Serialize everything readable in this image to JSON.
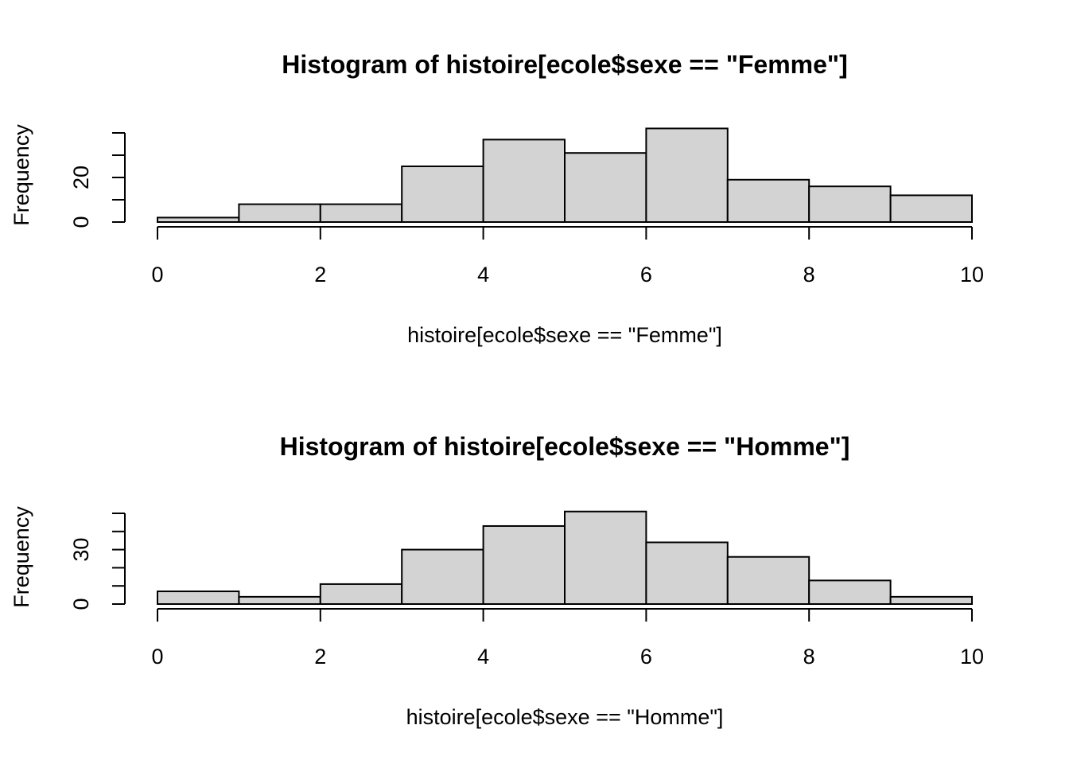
{
  "colors": {
    "bar_fill": "#d3d3d3",
    "bar_stroke": "#000000",
    "background": "#ffffff"
  },
  "chart_data": [
    {
      "type": "bar",
      "title": "Histogram of histoire[ecole$sexe == \"Femme\"]",
      "xlabel": "histoire[ecole$sexe == \"Femme\"]",
      "ylabel": "Frequency",
      "breaks": [
        0,
        1,
        2,
        3,
        4,
        5,
        6,
        7,
        8,
        9,
        10
      ],
      "values": [
        2,
        8,
        8,
        25,
        37,
        31,
        42,
        19,
        16,
        12
      ],
      "xlim": [
        0,
        10
      ],
      "ylim": [
        0,
        40
      ],
      "x_ticks": [
        0,
        2,
        4,
        6,
        8,
        10
      ],
      "y_ticks_labeled": [
        0,
        20
      ],
      "y_ticks": [
        0,
        10,
        20,
        30,
        40
      ],
      "grid": false,
      "legend": "none"
    },
    {
      "type": "bar",
      "title": "Histogram of histoire[ecole$sexe == \"Homme\"]",
      "xlabel": "histoire[ecole$sexe == \"Homme\"]",
      "ylabel": "Frequency",
      "breaks": [
        0,
        1,
        2,
        3,
        4,
        5,
        6,
        7,
        8,
        9,
        10
      ],
      "values": [
        7,
        4,
        11,
        30,
        43,
        51,
        34,
        26,
        13,
        4
      ],
      "xlim": [
        0,
        10
      ],
      "ylim": [
        0,
        50
      ],
      "x_ticks": [
        0,
        2,
        4,
        6,
        8,
        10
      ],
      "y_ticks_labeled": [
        0,
        30
      ],
      "y_ticks": [
        0,
        10,
        20,
        30,
        40,
        50
      ],
      "grid": false,
      "legend": "none"
    }
  ]
}
